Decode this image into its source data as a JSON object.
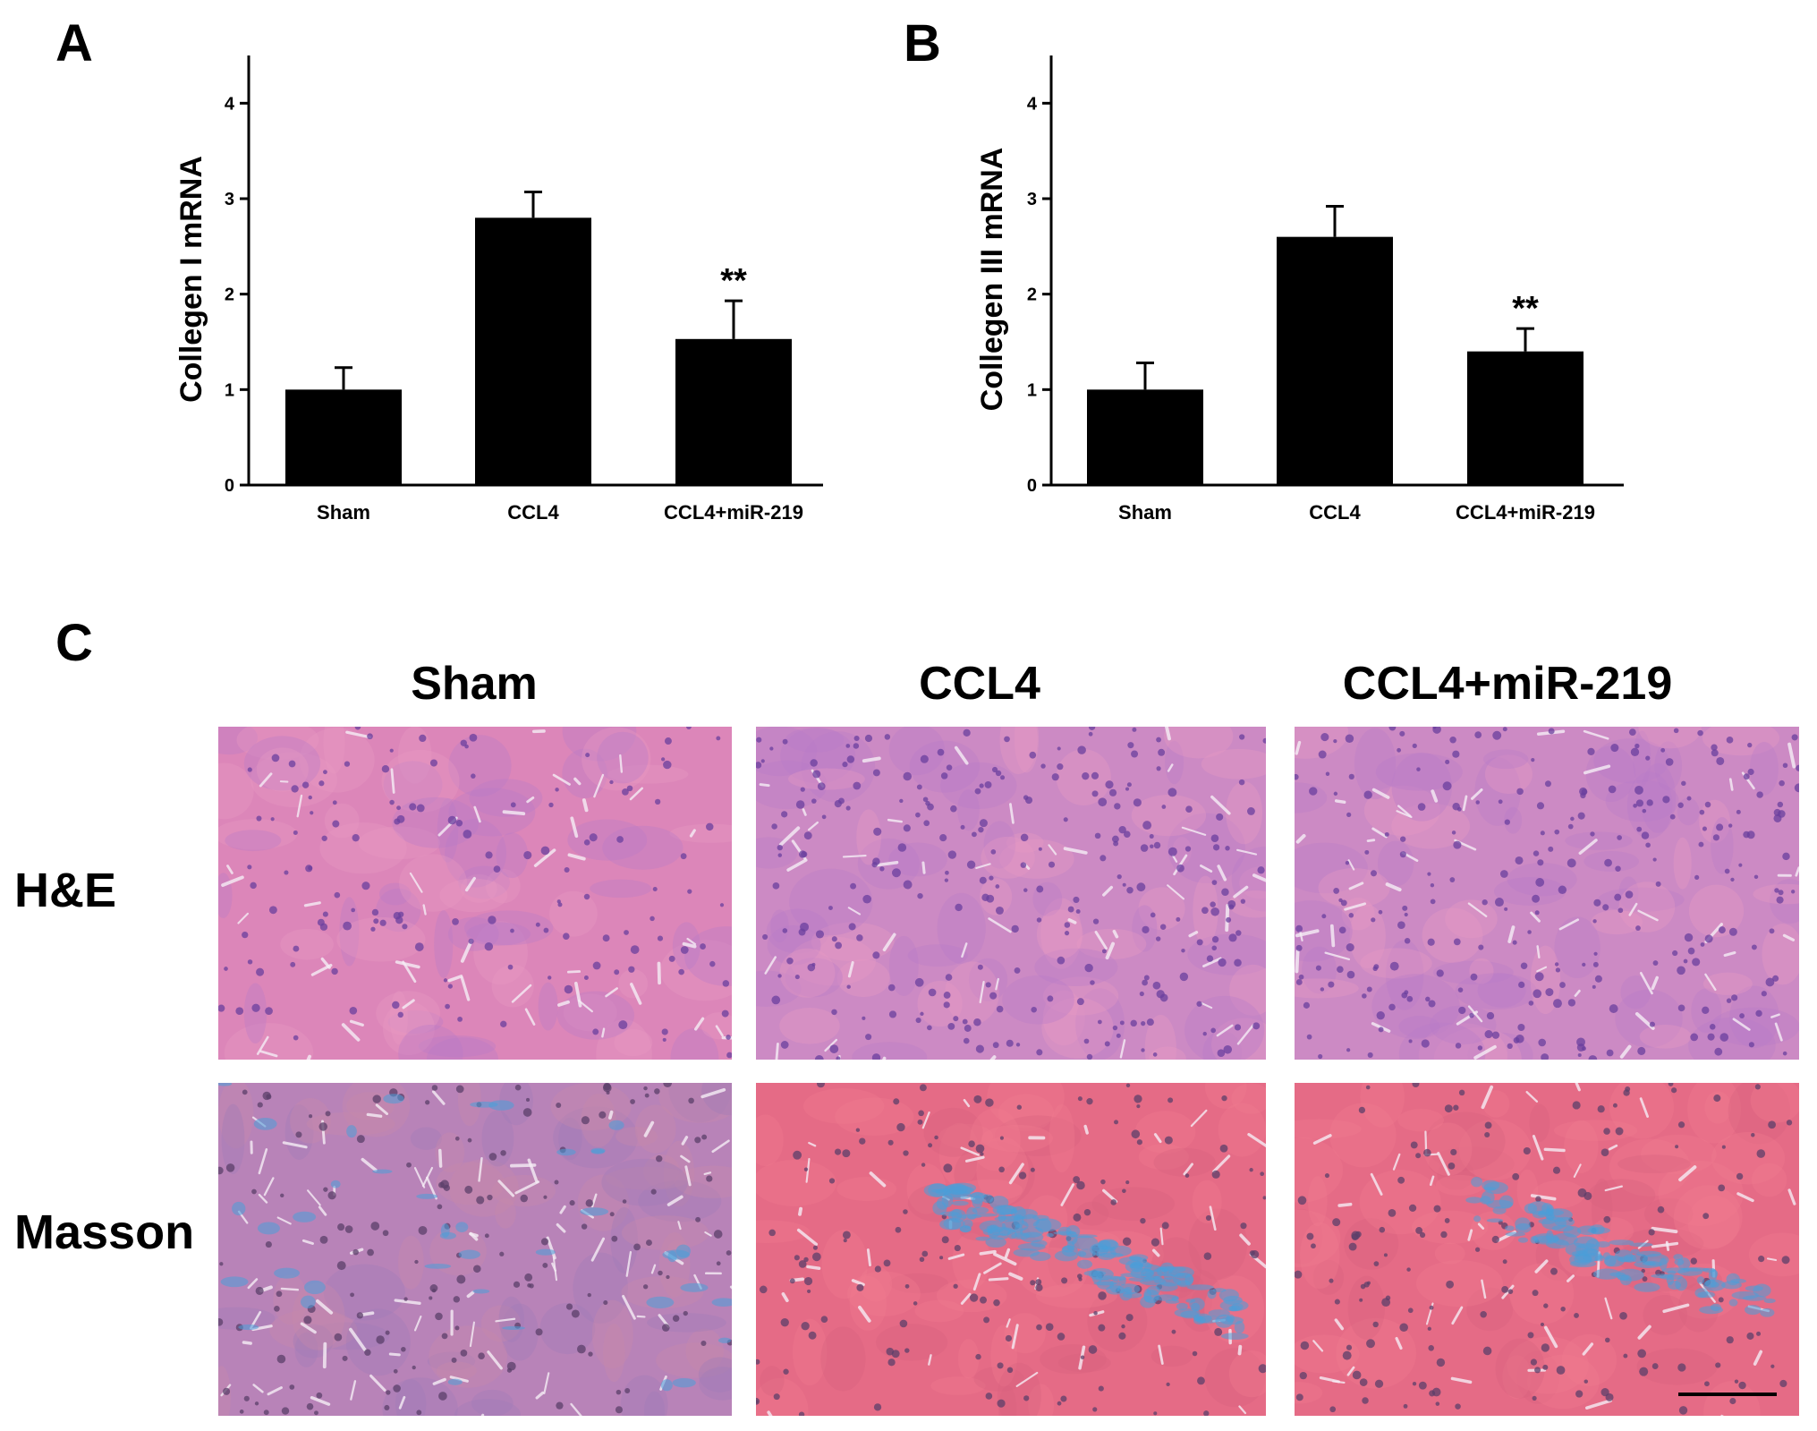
{
  "panels": {
    "a_letter": "A",
    "b_letter": "B",
    "c_letter": "C"
  },
  "chart_data": [
    {
      "type": "bar",
      "panel": "A",
      "categories": [
        "Sham",
        "CCL4",
        "CCL4+miR-219"
      ],
      "values": [
        1.0,
        2.8,
        1.53
      ],
      "errors": [
        0.23,
        0.27,
        0.4
      ],
      "annotations": [
        "",
        "",
        "**"
      ],
      "ylabel": "Collegen I mRNA",
      "ylim": [
        0,
        4.5
      ],
      "yticks": [
        0,
        1,
        2,
        3,
        4
      ],
      "bar_color": "#000000",
      "grid": false
    },
    {
      "type": "bar",
      "panel": "B",
      "categories": [
        "Sham",
        "CCL4",
        "CCL4+miR-219"
      ],
      "values": [
        1.0,
        2.6,
        1.4
      ],
      "errors": [
        0.28,
        0.32,
        0.24
      ],
      "annotations": [
        "",
        "",
        "**"
      ],
      "ylabel": "Collegen III mRNA",
      "ylim": [
        0,
        4.5
      ],
      "yticks": [
        0,
        1,
        2,
        3,
        4
      ],
      "bar_color": "#000000",
      "grid": false
    }
  ],
  "histology": {
    "columns": [
      "Sham",
      "CCL4",
      "CCL4+miR-219"
    ],
    "rows": [
      "H&E",
      "Masson"
    ],
    "stain_colors": {
      "he_base": "#d77fb6",
      "he_nuclei": "#6a3f9e",
      "masson_red": "#e45a7a",
      "masson_blue": "#4a9fd8",
      "masson_sham_base": "#b883b8"
    }
  }
}
